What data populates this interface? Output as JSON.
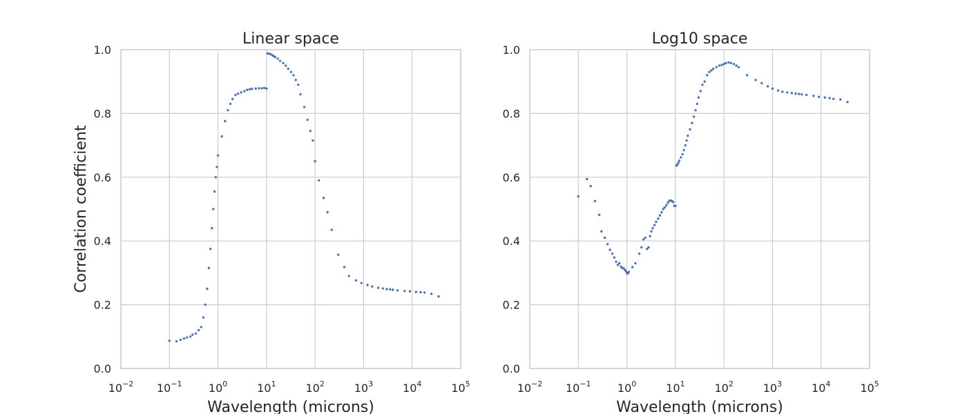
{
  "chart_data": [
    {
      "type": "scatter",
      "title": "Linear space",
      "xlabel": "Wavelength (microns)",
      "ylabel": "Correlation coefficient",
      "xscale": "log",
      "xlim": [
        0.01,
        100000
      ],
      "ylim": [
        0.0,
        1.0
      ],
      "xticks": [
        0.01,
        0.1,
        1,
        10,
        100,
        1000,
        10000,
        100000
      ],
      "xtick_labels": [
        {
          "base": "10",
          "exp": "−2"
        },
        {
          "base": "10",
          "exp": "−1"
        },
        {
          "base": "10",
          "exp": "0"
        },
        {
          "base": "10",
          "exp": "1"
        },
        {
          "base": "10",
          "exp": "2"
        },
        {
          "base": "10",
          "exp": "3"
        },
        {
          "base": "10",
          "exp": "4"
        },
        {
          "base": "10",
          "exp": "5"
        }
      ],
      "yticks": [
        "0.0",
        "0.2",
        "0.4",
        "0.6",
        "0.8",
        "1.0"
      ],
      "grid": true,
      "marker_color": "#4c72b0",
      "series": [
        {
          "x": [
            0.1,
            0.14,
            0.17,
            0.2,
            0.23,
            0.27,
            0.3,
            0.35,
            0.4,
            0.45,
            0.5,
            0.55,
            0.6,
            0.65,
            0.7,
            0.75,
            0.8,
            0.85,
            0.9,
            0.95,
            1.0,
            1.2,
            1.4,
            1.6,
            1.8,
            2.0,
            2.3,
            2.6,
            3.0,
            3.5,
            4.0,
            4.5,
            5.0,
            6.0,
            7.0,
            8.0,
            9.0,
            10.0,
            10.5,
            11,
            12,
            13,
            14,
            15,
            17,
            19,
            22,
            25,
            28,
            32,
            36,
            40,
            45,
            50,
            60,
            70,
            80,
            90,
            100,
            120,
            150,
            180,
            220,
            300,
            400,
            500,
            700,
            900,
            1200,
            1500,
            2000,
            2500,
            3000,
            3500,
            4000,
            5000,
            7000,
            9000,
            12000,
            15000,
            18000,
            25000,
            35000
          ],
          "y": [
            0.087,
            0.085,
            0.09,
            0.094,
            0.097,
            0.1,
            0.106,
            0.11,
            0.12,
            0.13,
            0.16,
            0.2,
            0.25,
            0.315,
            0.375,
            0.44,
            0.5,
            0.555,
            0.6,
            0.632,
            0.668,
            0.728,
            0.776,
            0.81,
            0.83,
            0.845,
            0.858,
            0.862,
            0.866,
            0.87,
            0.874,
            0.876,
            0.877,
            0.878,
            0.879,
            0.879,
            0.88,
            0.878,
            0.988,
            0.988,
            0.986,
            0.983,
            0.98,
            0.977,
            0.972,
            0.965,
            0.958,
            0.95,
            0.94,
            0.93,
            0.92,
            0.905,
            0.89,
            0.86,
            0.82,
            0.78,
            0.745,
            0.715,
            0.65,
            0.59,
            0.535,
            0.49,
            0.435,
            0.357,
            0.318,
            0.29,
            0.276,
            0.268,
            0.262,
            0.257,
            0.253,
            0.251,
            0.249,
            0.248,
            0.247,
            0.245,
            0.243,
            0.242,
            0.24,
            0.239,
            0.238,
            0.234,
            0.226
          ]
        }
      ]
    },
    {
      "type": "scatter",
      "title": "Log10 space",
      "xlabel": "Wavelength (microns)",
      "ylabel": "",
      "xscale": "log",
      "xlim": [
        0.01,
        100000
      ],
      "ylim": [
        0.0,
        1.0
      ],
      "xticks": [
        0.01,
        0.1,
        1,
        10,
        100,
        1000,
        10000,
        100000
      ],
      "xtick_labels": [
        {
          "base": "10",
          "exp": "−2"
        },
        {
          "base": "10",
          "exp": "−1"
        },
        {
          "base": "10",
          "exp": "0"
        },
        {
          "base": "10",
          "exp": "1"
        },
        {
          "base": "10",
          "exp": "2"
        },
        {
          "base": "10",
          "exp": "3"
        },
        {
          "base": "10",
          "exp": "4"
        },
        {
          "base": "10",
          "exp": "5"
        }
      ],
      "yticks": [
        "0.0",
        "0.2",
        "0.4",
        "0.6",
        "0.8",
        "1.0"
      ],
      "grid": true,
      "marker_color": "#4c72b0",
      "series": [
        {
          "x": [
            0.1,
            0.15,
            0.18,
            0.22,
            0.27,
            0.3,
            0.35,
            0.4,
            0.45,
            0.5,
            0.55,
            0.6,
            0.65,
            0.7,
            0.75,
            0.8,
            0.85,
            0.9,
            0.95,
            1.0,
            1.05,
            1.1,
            1.3,
            1.5,
            1.8,
            2.0,
            2.2,
            2.4,
            2.6,
            2.8,
            3.0,
            3.2,
            3.4,
            3.7,
            4.0,
            4.4,
            4.8,
            5.2,
            5.6,
            6.0,
            6.5,
            7.0,
            7.5,
            8.0,
            8.5,
            9.0,
            9.5,
            10.0,
            10.5,
            11,
            11.5,
            12,
            13,
            14,
            15,
            16,
            17,
            18,
            20,
            22,
            24,
            26,
            28,
            30,
            33,
            36,
            40,
            45,
            50,
            55,
            60,
            70,
            80,
            90,
            100,
            110,
            125,
            140,
            160,
            180,
            200,
            300,
            450,
            600,
            800,
            1000,
            1300,
            1600,
            2000,
            2500,
            3000,
            3500,
            4000,
            5000,
            7000,
            9000,
            12000,
            15000,
            18000,
            25000,
            35000
          ],
          "y": [
            0.54,
            0.594,
            0.572,
            0.525,
            0.482,
            0.43,
            0.41,
            0.39,
            0.372,
            0.36,
            0.348,
            0.335,
            0.325,
            0.33,
            0.32,
            0.315,
            0.315,
            0.31,
            0.306,
            0.3,
            0.298,
            0.303,
            0.318,
            0.33,
            0.36,
            0.38,
            0.405,
            0.41,
            0.375,
            0.38,
            0.415,
            0.43,
            0.44,
            0.45,
            0.46,
            0.47,
            0.48,
            0.49,
            0.5,
            0.505,
            0.512,
            0.52,
            0.526,
            0.527,
            0.525,
            0.522,
            0.51,
            0.51,
            0.636,
            0.64,
            0.645,
            0.652,
            0.662,
            0.672,
            0.685,
            0.7,
            0.715,
            0.73,
            0.75,
            0.77,
            0.79,
            0.81,
            0.83,
            0.85,
            0.87,
            0.89,
            0.9,
            0.92,
            0.93,
            0.935,
            0.94,
            0.945,
            0.95,
            0.952,
            0.955,
            0.958,
            0.96,
            0.958,
            0.955,
            0.95,
            0.945,
            0.92,
            0.905,
            0.895,
            0.885,
            0.878,
            0.872,
            0.868,
            0.866,
            0.864,
            0.862,
            0.861,
            0.86,
            0.858,
            0.855,
            0.852,
            0.85,
            0.848,
            0.846,
            0.844,
            0.836
          ]
        }
      ]
    }
  ]
}
